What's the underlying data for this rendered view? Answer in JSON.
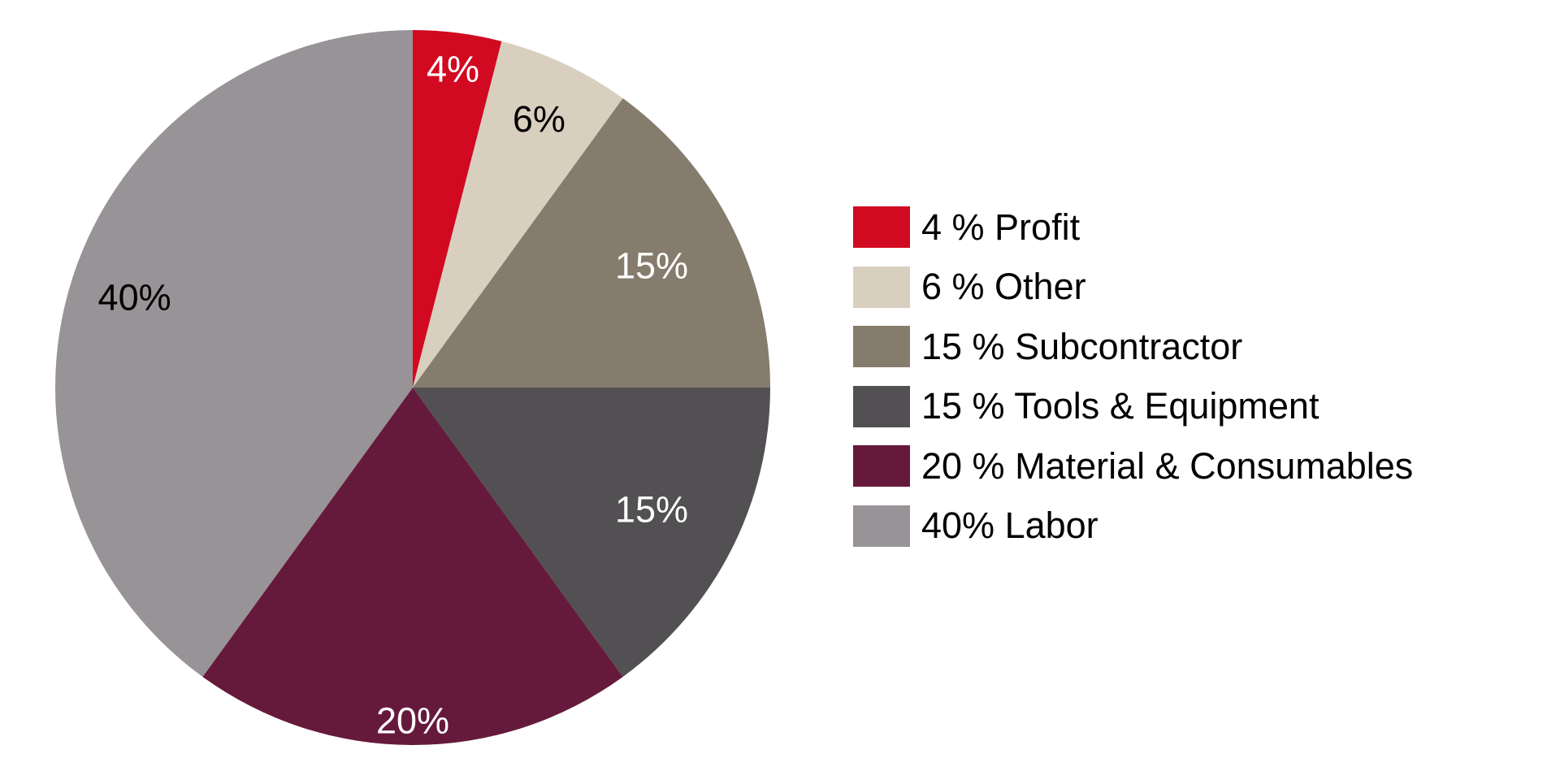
{
  "chart_data": {
    "type": "pie",
    "title": "",
    "start_angle": "12 o'clock, clockwise",
    "legend_position": "right",
    "slices": [
      {
        "label": "4 % Profit",
        "value": 4,
        "display": "4%",
        "color": "#d10a21",
        "label_color": "#ffffff"
      },
      {
        "label": "6 % Other",
        "value": 6,
        "display": "6%",
        "color": "#d9cfbf",
        "label_color": "#000000"
      },
      {
        "label": "15 % Subcontractor",
        "value": 15,
        "display": "15%",
        "color": "#857c6d",
        "label_color": "#ffffff"
      },
      {
        "label": "15 % Tools & Equipment",
        "value": 15,
        "display": "15%",
        "color": "#525052",
        "label_color": "#ffffff"
      },
      {
        "label": "20 % Material & Consumables",
        "value": 20,
        "display": "20%",
        "color": "#661a3b",
        "label_color": "#ffffff"
      },
      {
        "label": "40% Labor",
        "value": 40,
        "display": "40%",
        "color": "#979397",
        "label_color": "#000000"
      }
    ]
  }
}
